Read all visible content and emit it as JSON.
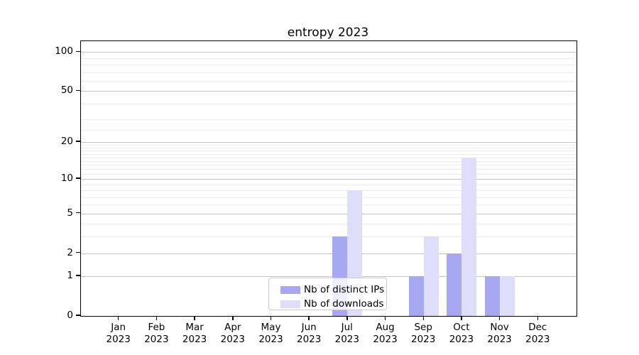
{
  "title": "entropy 2023",
  "chart_data": {
    "type": "bar",
    "title": "entropy 2023",
    "yscale": "log1p",
    "ylim": [
      0,
      121
    ],
    "grid": "horizontal, major and minor gridlines",
    "categories": [
      "Jan 2023",
      "Feb 2023",
      "Mar 2023",
      "Apr 2023",
      "May 2023",
      "Jun 2023",
      "Jul 2023",
      "Aug 2023",
      "Sep 2023",
      "Oct 2023",
      "Nov 2023",
      "Dec 2023"
    ],
    "series": [
      {
        "name": "Nb of distinct IPs",
        "color": "#a8a8f2",
        "values": [
          0,
          0,
          0,
          0,
          0,
          0,
          3,
          0,
          1,
          2,
          1,
          0
        ]
      },
      {
        "name": "Nb of downloads",
        "color": "#dedefa",
        "values": [
          0,
          0,
          0,
          0,
          0,
          0,
          8,
          0,
          3,
          15,
          1,
          0
        ]
      }
    ],
    "y_major_ticks": [
      0,
      1,
      2,
      5,
      10,
      20,
      50,
      100
    ],
    "y_minor_gridlines": [
      3,
      4,
      6,
      7,
      8,
      9,
      11,
      12,
      13,
      14,
      15,
      16,
      17,
      18,
      19,
      25,
      30,
      40,
      60,
      70,
      80,
      90
    ],
    "colors": {
      "axis": "#000000",
      "grid_major": "#c3c3c3",
      "grid_minor": "#ececec",
      "tick_label": "#000000"
    },
    "legend": {
      "position": "lower center",
      "items": [
        "Nb of distinct IPs",
        "Nb of downloads"
      ]
    }
  }
}
